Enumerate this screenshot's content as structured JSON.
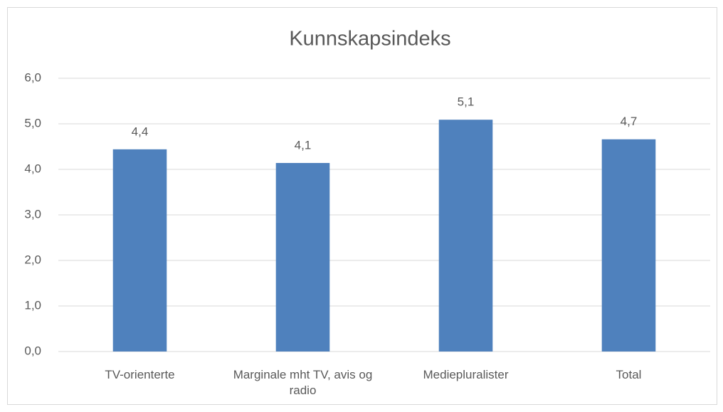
{
  "chart_data": {
    "type": "bar",
    "title": "Kunnskapsindeks",
    "categories": [
      "TV-orienterte",
      "Marginale mht TV, avis og radio",
      "Mediepluralister",
      "Total"
    ],
    "values": [
      4.44,
      4.14,
      5.09,
      4.66
    ],
    "value_labels": [
      "4,4",
      "4,1",
      "5,1",
      "4,7"
    ],
    "color": "#4f81bd",
    "ylim": [
      0,
      6
    ],
    "yticks": [
      {
        "value": 0,
        "label": "0,0"
      },
      {
        "value": 1,
        "label": "1,0"
      },
      {
        "value": 2,
        "label": "2,0"
      },
      {
        "value": 3,
        "label": "3,0"
      },
      {
        "value": 4,
        "label": "4,0"
      },
      {
        "value": 5,
        "label": "5,0"
      },
      {
        "value": 6,
        "label": "6,0"
      }
    ],
    "grid": true
  }
}
